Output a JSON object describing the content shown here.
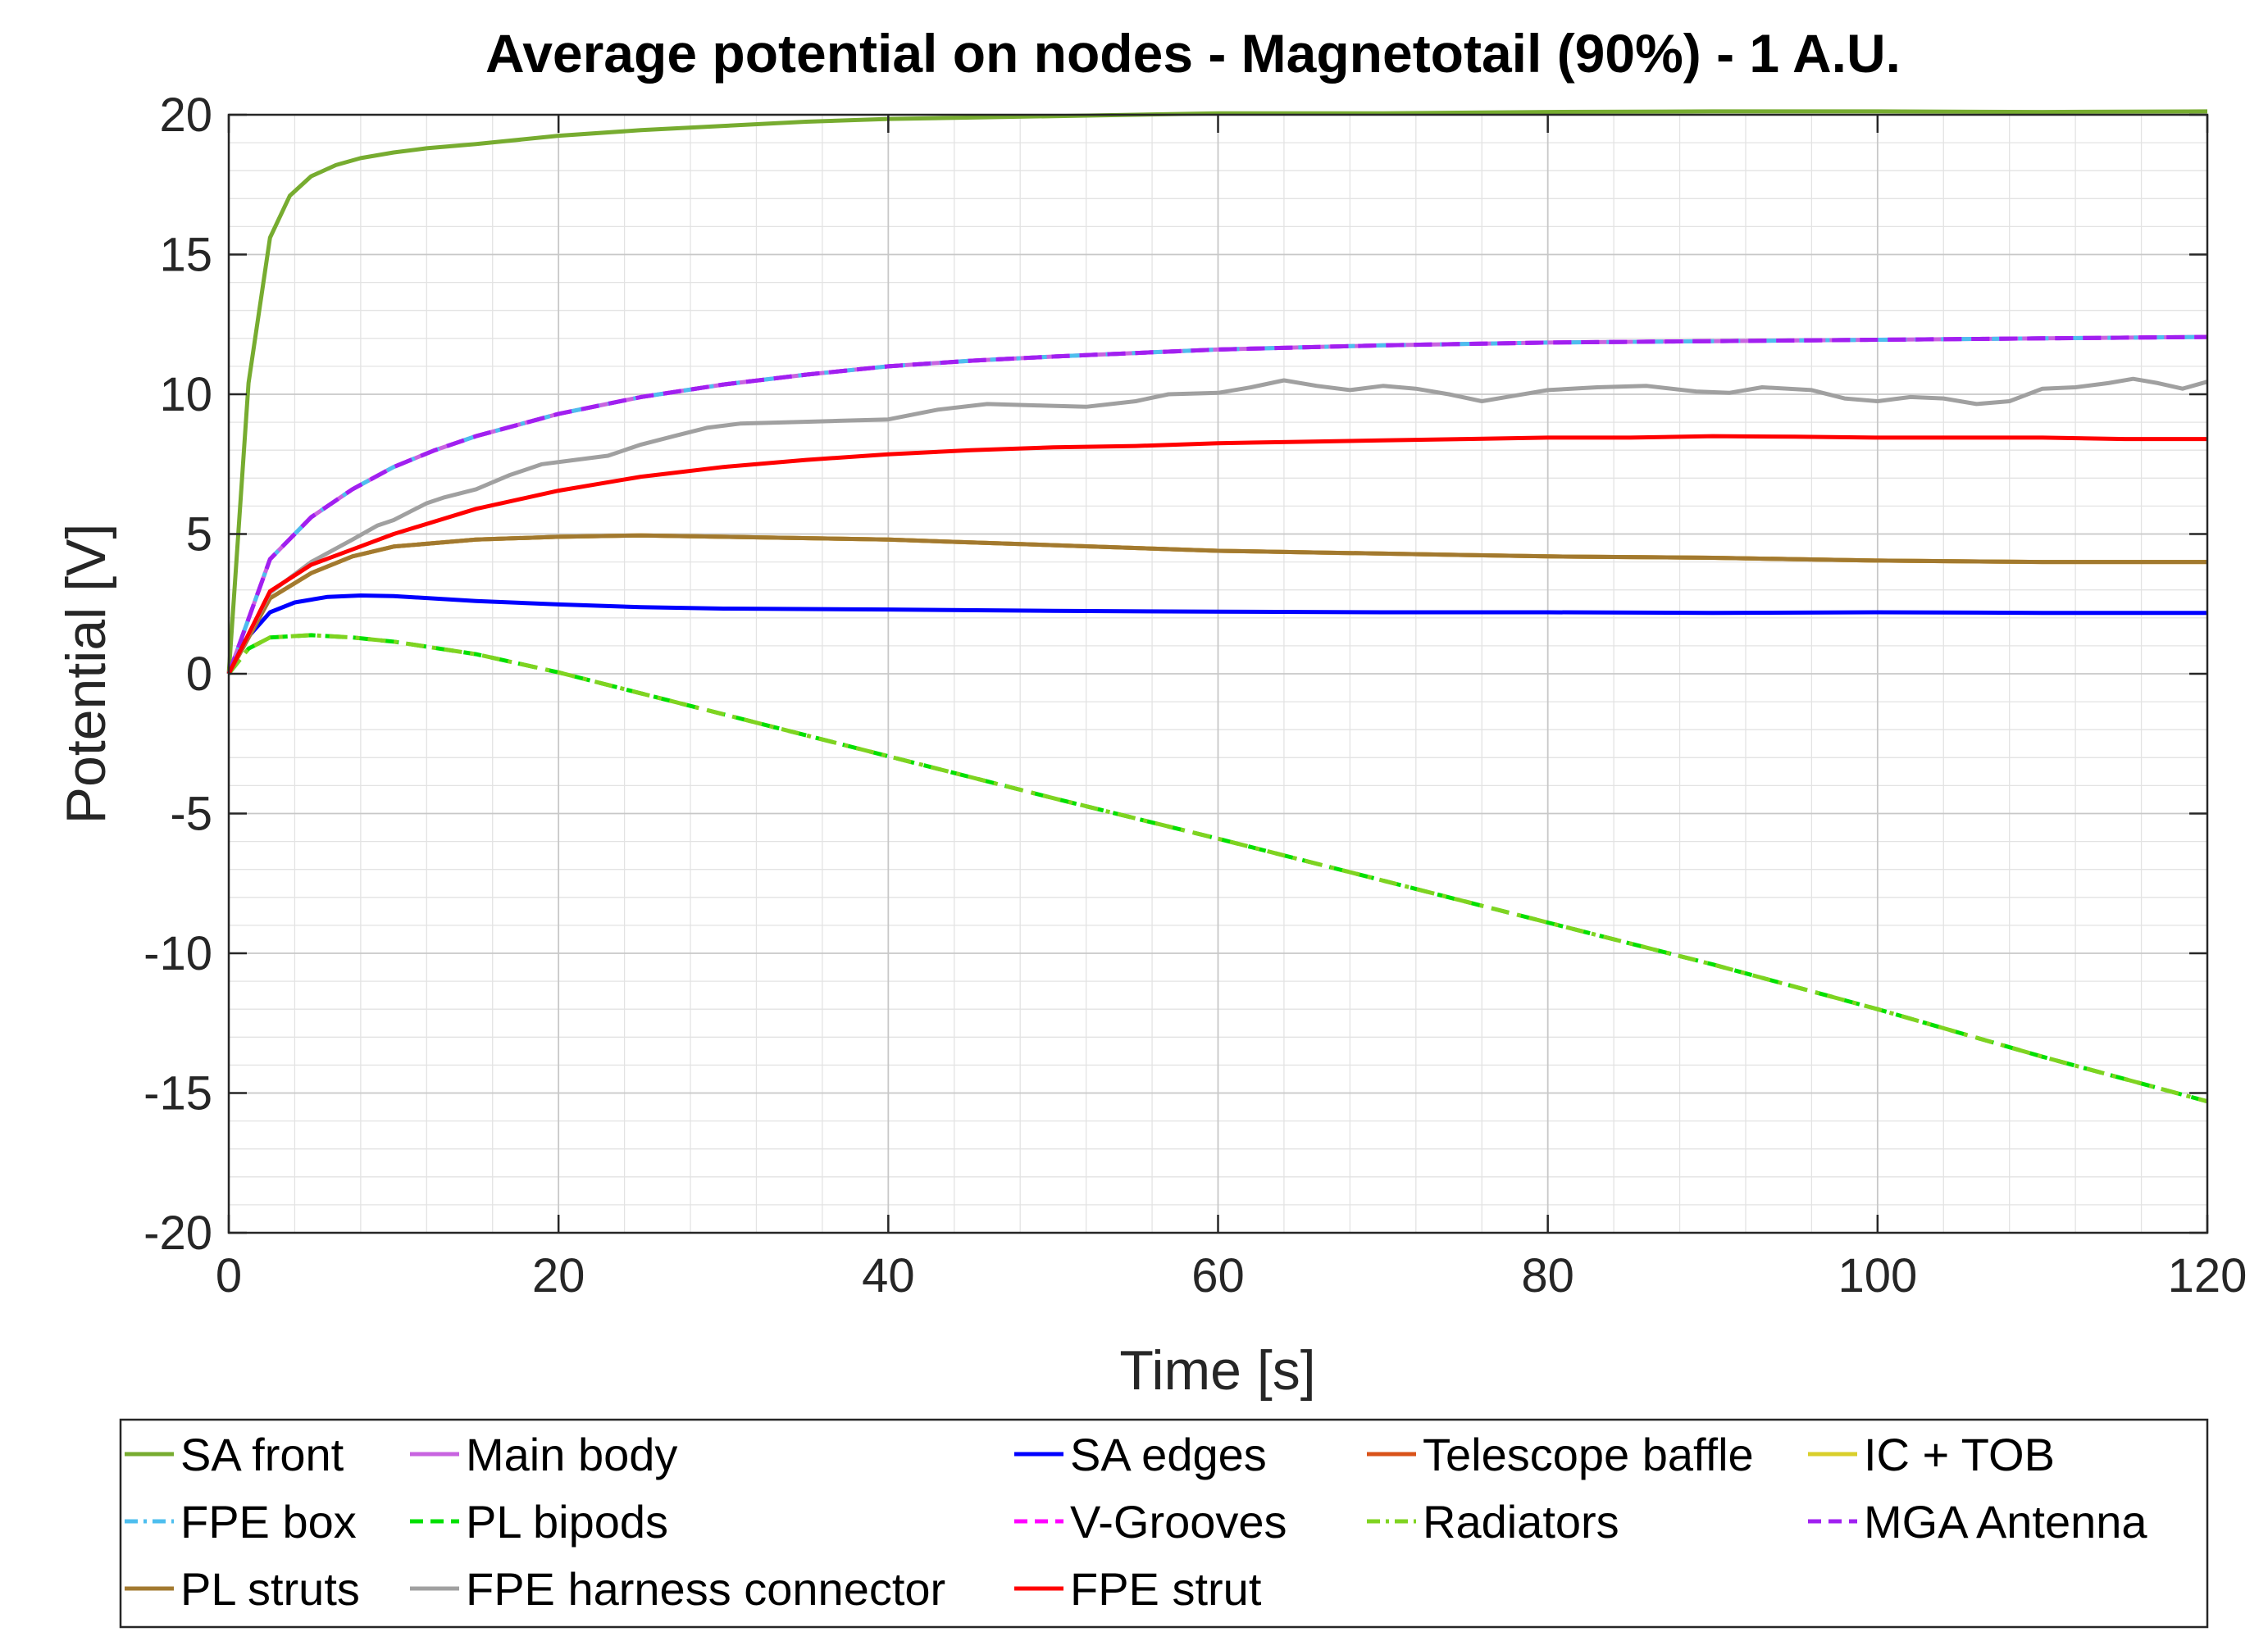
{
  "chart_data": {
    "type": "line",
    "title": "Average potential on nodes - Magnetotail (90%) - 1 A.U.",
    "xlabel": "Time [s]",
    "ylabel": "Potential [V]",
    "xlim": [
      0,
      120
    ],
    "ylim": [
      -20,
      20
    ],
    "xticks": [
      "0",
      "20",
      "40",
      "60",
      "80",
      "100",
      "120"
    ],
    "yticks": [
      "20",
      "15",
      "10",
      "5",
      "0",
      "-5",
      "-10",
      "-15",
      "-20"
    ],
    "grid": true,
    "legend_position": "bottom",
    "series": [
      {
        "name": "SA front",
        "color": "#77AC30",
        "dash": "solid",
        "points": [
          [
            0,
            0
          ],
          [
            1.2,
            10.4
          ],
          [
            2.5,
            15.6
          ],
          [
            3.7,
            17.1
          ],
          [
            5,
            17.8
          ],
          [
            6.5,
            18.2
          ],
          [
            8,
            18.45
          ],
          [
            10,
            18.65
          ],
          [
            12,
            18.8
          ],
          [
            15,
            18.95
          ],
          [
            20,
            19.25
          ],
          [
            25,
            19.45
          ],
          [
            30,
            19.6
          ],
          [
            35,
            19.75
          ],
          [
            40,
            19.85
          ],
          [
            50,
            19.95
          ],
          [
            60,
            20.05
          ],
          [
            70,
            20.05
          ],
          [
            80,
            20.1
          ],
          [
            90,
            20.12
          ],
          [
            100,
            20.12
          ],
          [
            110,
            20.1
          ],
          [
            120,
            20.12
          ]
        ]
      },
      {
        "name": "Main body",
        "color": "#C864E0",
        "dash": "solid",
        "points": [
          [
            0,
            0
          ],
          [
            2.5,
            4.1
          ],
          [
            5,
            5.6
          ],
          [
            7.5,
            6.6
          ],
          [
            10,
            7.4
          ],
          [
            12.5,
            8.0
          ],
          [
            15,
            8.5
          ],
          [
            20,
            9.3
          ],
          [
            25,
            9.9
          ],
          [
            30,
            10.35
          ],
          [
            35,
            10.7
          ],
          [
            40,
            11.0
          ],
          [
            45,
            11.2
          ],
          [
            50,
            11.35
          ],
          [
            60,
            11.6
          ],
          [
            70,
            11.75
          ],
          [
            80,
            11.85
          ],
          [
            90,
            11.9
          ],
          [
            100,
            11.95
          ],
          [
            110,
            12.0
          ],
          [
            120,
            12.05
          ]
        ]
      },
      {
        "name": "SA edges",
        "color": "#0000FF",
        "dash": "solid",
        "points": [
          [
            0,
            0
          ],
          [
            1,
            1.2
          ],
          [
            2.5,
            2.2
          ],
          [
            4,
            2.55
          ],
          [
            6,
            2.75
          ],
          [
            8,
            2.8
          ],
          [
            10,
            2.78
          ],
          [
            15,
            2.6
          ],
          [
            20,
            2.48
          ],
          [
            25,
            2.38
          ],
          [
            30,
            2.33
          ],
          [
            40,
            2.3
          ],
          [
            50,
            2.25
          ],
          [
            60,
            2.22
          ],
          [
            70,
            2.2
          ],
          [
            80,
            2.2
          ],
          [
            90,
            2.18
          ],
          [
            100,
            2.2
          ],
          [
            110,
            2.18
          ],
          [
            120,
            2.18
          ]
        ]
      },
      {
        "name": "Telescope baffle",
        "color": "#D95319",
        "dash": "solid",
        "points": [
          [
            0,
            0
          ],
          [
            2.5,
            2.7
          ],
          [
            5,
            3.6
          ],
          [
            7.5,
            4.2
          ],
          [
            10,
            4.55
          ],
          [
            15,
            4.8
          ],
          [
            20,
            4.9
          ],
          [
            25,
            4.95
          ],
          [
            30,
            4.9
          ],
          [
            40,
            4.8
          ],
          [
            50,
            4.6
          ],
          [
            60,
            4.4
          ],
          [
            70,
            4.3
          ],
          [
            80,
            4.2
          ],
          [
            90,
            4.15
          ],
          [
            100,
            4.05
          ],
          [
            110,
            4.0
          ],
          [
            120,
            4.0
          ]
        ]
      },
      {
        "name": "IC + TOB",
        "color": "#D9CF2B",
        "dash": "solid",
        "points": [
          [
            0,
            0
          ],
          [
            2.5,
            2.7
          ],
          [
            5,
            3.6
          ],
          [
            7.5,
            4.2
          ],
          [
            10,
            4.55
          ],
          [
            15,
            4.8
          ],
          [
            20,
            4.9
          ],
          [
            25,
            4.95
          ],
          [
            30,
            4.9
          ],
          [
            40,
            4.8
          ],
          [
            50,
            4.6
          ],
          [
            60,
            4.4
          ],
          [
            70,
            4.3
          ],
          [
            80,
            4.2
          ],
          [
            90,
            4.15
          ],
          [
            100,
            4.05
          ],
          [
            110,
            4.0
          ],
          [
            120,
            4.0
          ]
        ]
      },
      {
        "name": "FPE box",
        "color": "#4DBEEE",
        "dash": "dashdot",
        "points": [
          [
            0,
            0
          ],
          [
            2.5,
            4.1
          ],
          [
            5,
            5.6
          ],
          [
            7.5,
            6.6
          ],
          [
            10,
            7.4
          ],
          [
            12.5,
            8.0
          ],
          [
            15,
            8.5
          ],
          [
            20,
            9.3
          ],
          [
            25,
            9.9
          ],
          [
            30,
            10.35
          ],
          [
            35,
            10.7
          ],
          [
            40,
            11.0
          ],
          [
            45,
            11.2
          ],
          [
            50,
            11.35
          ],
          [
            60,
            11.6
          ],
          [
            70,
            11.75
          ],
          [
            80,
            11.85
          ],
          [
            90,
            11.9
          ],
          [
            100,
            11.95
          ],
          [
            110,
            12.0
          ],
          [
            120,
            12.05
          ]
        ]
      },
      {
        "name": "PL bipods",
        "color": "#00E000",
        "dash": "dashed",
        "points": [
          [
            0,
            0
          ],
          [
            1.2,
            0.9
          ],
          [
            2.5,
            1.3
          ],
          [
            5,
            1.38
          ],
          [
            7.5,
            1.3
          ],
          [
            10,
            1.15
          ],
          [
            15,
            0.7
          ],
          [
            20,
            0.05
          ],
          [
            25,
            -0.7
          ],
          [
            30,
            -1.45
          ],
          [
            40,
            -2.95
          ],
          [
            50,
            -4.45
          ],
          [
            60,
            -5.9
          ],
          [
            70,
            -7.4
          ],
          [
            80,
            -8.9
          ],
          [
            90,
            -10.4
          ],
          [
            100,
            -12.0
          ],
          [
            110,
            -13.7
          ],
          [
            120,
            -15.3
          ]
        ]
      },
      {
        "name": "V-Grooves",
        "color": "#FF00FF",
        "dash": "dashed",
        "points": [
          [
            0,
            0
          ],
          [
            2.5,
            4.1
          ],
          [
            5,
            5.6
          ],
          [
            7.5,
            6.6
          ],
          [
            10,
            7.4
          ],
          [
            12.5,
            8.0
          ],
          [
            15,
            8.5
          ],
          [
            20,
            9.3
          ],
          [
            25,
            9.9
          ],
          [
            30,
            10.35
          ],
          [
            35,
            10.7
          ],
          [
            40,
            11.0
          ],
          [
            45,
            11.2
          ],
          [
            50,
            11.35
          ],
          [
            60,
            11.6
          ],
          [
            70,
            11.75
          ],
          [
            80,
            11.85
          ],
          [
            90,
            11.9
          ],
          [
            100,
            11.95
          ],
          [
            110,
            12.0
          ],
          [
            120,
            12.05
          ]
        ]
      },
      {
        "name": "Radiators",
        "color": "#7FD321",
        "dash": "dashdot",
        "points": [
          [
            0,
            0
          ],
          [
            1.2,
            0.9
          ],
          [
            2.5,
            1.3
          ],
          [
            5,
            1.38
          ],
          [
            7.5,
            1.3
          ],
          [
            10,
            1.15
          ],
          [
            15,
            0.7
          ],
          [
            20,
            0.05
          ],
          [
            25,
            -0.7
          ],
          [
            30,
            -1.45
          ],
          [
            40,
            -2.95
          ],
          [
            50,
            -4.45
          ],
          [
            60,
            -5.9
          ],
          [
            70,
            -7.4
          ],
          [
            80,
            -8.9
          ],
          [
            90,
            -10.4
          ],
          [
            100,
            -12.0
          ],
          [
            110,
            -13.7
          ],
          [
            120,
            -15.3
          ]
        ]
      },
      {
        "name": "MGA Antenna",
        "color": "#A020F0",
        "dash": "dashed",
        "points": [
          [
            0,
            0
          ],
          [
            2.5,
            4.1
          ],
          [
            5,
            5.6
          ],
          [
            7.5,
            6.6
          ],
          [
            10,
            7.4
          ],
          [
            12.5,
            8.0
          ],
          [
            15,
            8.5
          ],
          [
            20,
            9.3
          ],
          [
            25,
            9.9
          ],
          [
            30,
            10.35
          ],
          [
            35,
            10.7
          ],
          [
            40,
            11.0
          ],
          [
            45,
            11.2
          ],
          [
            50,
            11.35
          ],
          [
            60,
            11.6
          ],
          [
            70,
            11.75
          ],
          [
            80,
            11.85
          ],
          [
            90,
            11.9
          ],
          [
            100,
            11.95
          ],
          [
            110,
            12.0
          ],
          [
            120,
            12.05
          ]
        ]
      },
      {
        "name": "PL struts",
        "color": "#A2792F",
        "dash": "solid",
        "points": [
          [
            0,
            0
          ],
          [
            2.5,
            2.7
          ],
          [
            5,
            3.6
          ],
          [
            7.5,
            4.2
          ],
          [
            10,
            4.55
          ],
          [
            15,
            4.8
          ],
          [
            20,
            4.9
          ],
          [
            25,
            4.95
          ],
          [
            30,
            4.9
          ],
          [
            40,
            4.8
          ],
          [
            50,
            4.6
          ],
          [
            60,
            4.4
          ],
          [
            70,
            4.3
          ],
          [
            80,
            4.2
          ],
          [
            90,
            4.15
          ],
          [
            100,
            4.05
          ],
          [
            110,
            4.0
          ],
          [
            120,
            4.0
          ]
        ]
      },
      {
        "name": "FPE harness connector",
        "color": "#A0A0A0",
        "dash": "solid",
        "points": [
          [
            0,
            0
          ],
          [
            2.5,
            2.9
          ],
          [
            5,
            4.0
          ],
          [
            7.5,
            4.8
          ],
          [
            9,
            5.3
          ],
          [
            10,
            5.5
          ],
          [
            11,
            5.8
          ],
          [
            12,
            6.1
          ],
          [
            13,
            6.3
          ],
          [
            15,
            6.6
          ],
          [
            17,
            7.1
          ],
          [
            19,
            7.5
          ],
          [
            21,
            7.65
          ],
          [
            23,
            7.8
          ],
          [
            25,
            8.2
          ],
          [
            27,
            8.5
          ],
          [
            29,
            8.8
          ],
          [
            31,
            8.95
          ],
          [
            34,
            9.0
          ],
          [
            37,
            9.05
          ],
          [
            40,
            9.1
          ],
          [
            43,
            9.45
          ],
          [
            46,
            9.65
          ],
          [
            49,
            9.6
          ],
          [
            52,
            9.55
          ],
          [
            55,
            9.75
          ],
          [
            57,
            10.0
          ],
          [
            60,
            10.05
          ],
          [
            62,
            10.25
          ],
          [
            64,
            10.5
          ],
          [
            66,
            10.3
          ],
          [
            68,
            10.15
          ],
          [
            70,
            10.3
          ],
          [
            72,
            10.2
          ],
          [
            74,
            10.0
          ],
          [
            76,
            9.75
          ],
          [
            78,
            9.95
          ],
          [
            80,
            10.15
          ],
          [
            83,
            10.25
          ],
          [
            86,
            10.3
          ],
          [
            89,
            10.1
          ],
          [
            91,
            10.05
          ],
          [
            93,
            10.25
          ],
          [
            96,
            10.15
          ],
          [
            98,
            9.85
          ],
          [
            100,
            9.75
          ],
          [
            102,
            9.9
          ],
          [
            104,
            9.85
          ],
          [
            106,
            9.65
          ],
          [
            108,
            9.75
          ],
          [
            110,
            10.2
          ],
          [
            112,
            10.25
          ],
          [
            114,
            10.4
          ],
          [
            115.5,
            10.55
          ],
          [
            117,
            10.4
          ],
          [
            118.5,
            10.2
          ],
          [
            120,
            10.45
          ]
        ]
      },
      {
        "name": "FPE strut",
        "color": "#FF0000",
        "dash": "solid",
        "points": [
          [
            0,
            0
          ],
          [
            2.5,
            2.95
          ],
          [
            5,
            3.9
          ],
          [
            7.5,
            4.45
          ],
          [
            10,
            5.0
          ],
          [
            15,
            5.9
          ],
          [
            20,
            6.55
          ],
          [
            25,
            7.05
          ],
          [
            30,
            7.4
          ],
          [
            35,
            7.65
          ],
          [
            40,
            7.85
          ],
          [
            45,
            8.0
          ],
          [
            50,
            8.1
          ],
          [
            55,
            8.15
          ],
          [
            60,
            8.25
          ],
          [
            65,
            8.3
          ],
          [
            70,
            8.35
          ],
          [
            75,
            8.4
          ],
          [
            80,
            8.45
          ],
          [
            85,
            8.45
          ],
          [
            90,
            8.5
          ],
          [
            95,
            8.48
          ],
          [
            100,
            8.45
          ],
          [
            105,
            8.45
          ],
          [
            110,
            8.45
          ],
          [
            115,
            8.4
          ],
          [
            120,
            8.4
          ]
        ]
      }
    ]
  }
}
